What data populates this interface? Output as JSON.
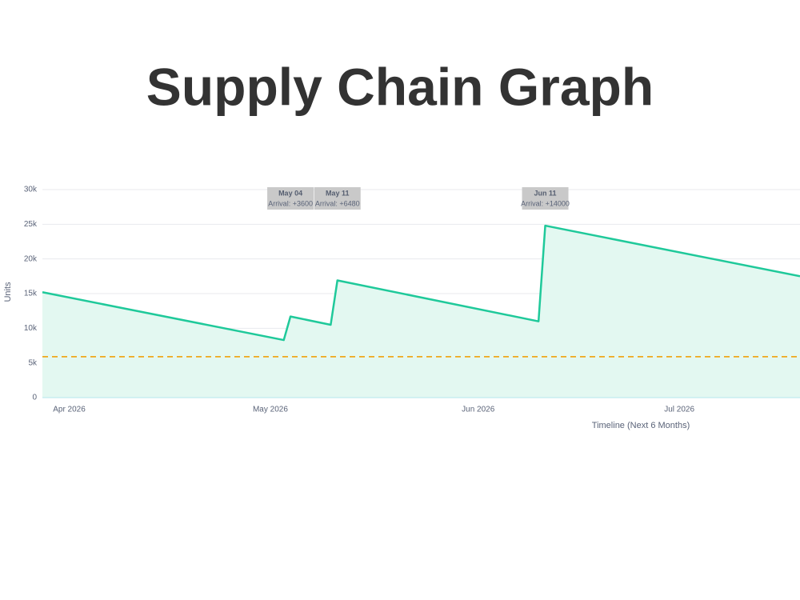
{
  "chart_data": {
    "type": "area",
    "title": "Supply Chain Graph",
    "x_label": "Timeline (Next 6 Months)",
    "y_label": "Units",
    "x": [
      "2026-03-28",
      "2026-05-03",
      "2026-05-04",
      "2026-05-10",
      "2026-05-11",
      "2026-06-10",
      "2026-06-11",
      "2026-07-19"
    ],
    "values": [
      15200,
      8300,
      11700,
      10500,
      16900,
      11000,
      24800,
      17500
    ],
    "color": "#1fc99a",
    "fill_color": "#e3f8f1",
    "xlim": [
      "2026-03-28",
      "2026-07-19"
    ],
    "xticks": [
      {
        "value": "2026-04-01",
        "label": "Apr 2026"
      },
      {
        "value": "2026-05-01",
        "label": "May 2026"
      },
      {
        "value": "2026-06-01",
        "label": "Jun 2026"
      },
      {
        "value": "2026-07-01",
        "label": "Jul 2026"
      }
    ],
    "ylim": [
      0,
      30000
    ],
    "yticks": [
      0,
      {
        "value": 5000,
        "label": "5k"
      },
      {
        "value": 10000,
        "label": "10k"
      },
      {
        "value": 15000,
        "label": "15k"
      },
      {
        "value": 20000,
        "label": "20k"
      },
      {
        "value": 25000,
        "label": "25k"
      },
      {
        "value": 30000,
        "label": "30k"
      }
    ],
    "grid": true,
    "reference_line": {
      "value": 5900,
      "color": "#f0a81c"
    },
    "annotations": [
      {
        "x": "2026-05-04",
        "date": "May 04",
        "text": "Arrival: +3600"
      },
      {
        "x": "2026-05-11",
        "date": "May 11",
        "text": "Arrival: +6480"
      },
      {
        "x": "2026-06-11",
        "date": "Jun 11",
        "text": "Arrival: +14000"
      }
    ]
  }
}
